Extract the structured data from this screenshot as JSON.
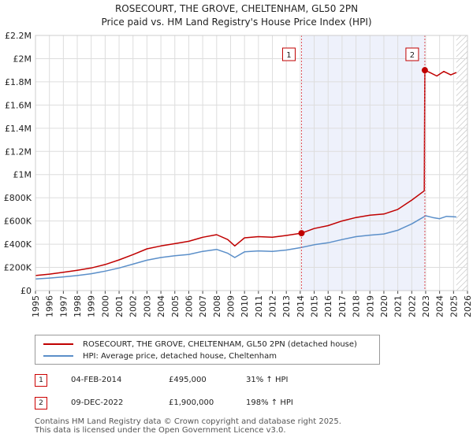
{
  "header": {
    "title": "ROSECOURT, THE GROVE, CHELTENHAM, GL50 2PN",
    "subtitle": "Price paid vs. HM Land Registry's House Price Index (HPI)"
  },
  "colors": {
    "property": "#c00000",
    "hpi": "#5b8fc9",
    "shade": "#eef1fb",
    "marker_line": "#e0505a",
    "grid": "#dddddd"
  },
  "chart_data": {
    "type": "line",
    "title": "Price paid vs. HM Land Registry's House Price Index (HPI)",
    "xlabel": "",
    "ylabel": "",
    "xlim": [
      1995,
      2026
    ],
    "ylim": [
      0,
      2200000
    ],
    "y_ticks": [
      {
        "value": 0,
        "label": "£0"
      },
      {
        "value": 200000,
        "label": "£200K"
      },
      {
        "value": 400000,
        "label": "£400K"
      },
      {
        "value": 600000,
        "label": "£600K"
      },
      {
        "value": 800000,
        "label": "£800K"
      },
      {
        "value": 1000000,
        "label": "£1M"
      },
      {
        "value": 1200000,
        "label": "£1.2M"
      },
      {
        "value": 1400000,
        "label": "£1.4M"
      },
      {
        "value": 1600000,
        "label": "£1.6M"
      },
      {
        "value": 1800000,
        "label": "£1.8M"
      },
      {
        "value": 2000000,
        "label": "£2M"
      },
      {
        "value": 2200000,
        "label": "£2.2M"
      }
    ],
    "x_ticks": [
      "1995",
      "1996",
      "1997",
      "1998",
      "1999",
      "2000",
      "2001",
      "2002",
      "2003",
      "2004",
      "2005",
      "2006",
      "2007",
      "2008",
      "2009",
      "2010",
      "2011",
      "2012",
      "2013",
      "2014",
      "2015",
      "2016",
      "2017",
      "2018",
      "2019",
      "2020",
      "2021",
      "2022",
      "2023",
      "2024",
      "2025",
      "2026"
    ],
    "shaded_ranges": [
      [
        2014.09,
        2022.94
      ]
    ],
    "hatched_ranges": [
      [
        2025.2,
        2026
      ]
    ],
    "series": [
      {
        "name": "ROSECOURT, THE GROVE, CHELTENHAM, GL50 2PN (detached house)",
        "color": "#c00000",
        "x": [
          1995,
          1996,
          1997,
          1998,
          1999,
          2000,
          2001,
          2002,
          2003,
          2004,
          2005,
          2006,
          2007,
          2008,
          2008.8,
          2009.3,
          2010,
          2011,
          2012,
          2013,
          2014.09,
          2015,
          2016,
          2017,
          2018,
          2019,
          2020,
          2021,
          2022,
          2022.9,
          2022.94,
          2023.3,
          2023.8,
          2024.3,
          2024.8,
          2025.2
        ],
        "y": [
          130000,
          142000,
          158000,
          175000,
          195000,
          225000,
          265000,
          310000,
          360000,
          385000,
          405000,
          425000,
          460000,
          482000,
          440000,
          385000,
          455000,
          465000,
          460000,
          475000,
          495000,
          535000,
          560000,
          600000,
          630000,
          650000,
          660000,
          700000,
          780000,
          860000,
          1900000,
          1880000,
          1850000,
          1890000,
          1860000,
          1880000
        ]
      },
      {
        "name": "HPI: Average price, detached house, Cheltenham",
        "color": "#5b8fc9",
        "x": [
          1995,
          1996,
          1997,
          1998,
          1999,
          2000,
          2001,
          2002,
          2003,
          2004,
          2005,
          2006,
          2007,
          2008,
          2008.8,
          2009.3,
          2010,
          2011,
          2012,
          2013,
          2014,
          2015,
          2016,
          2017,
          2018,
          2019,
          2020,
          2021,
          2022,
          2022.5,
          2023,
          2023.5,
          2024,
          2024.5,
          2025.2
        ],
        "y": [
          100000,
          108000,
          118000,
          130000,
          145000,
          168000,
          195000,
          228000,
          262000,
          285000,
          300000,
          312000,
          338000,
          355000,
          322000,
          285000,
          334000,
          342000,
          338000,
          350000,
          370000,
          395000,
          412000,
          440000,
          465000,
          478000,
          488000,
          520000,
          575000,
          610000,
          645000,
          630000,
          620000,
          640000,
          635000
        ]
      }
    ],
    "annotations": [
      {
        "id": "1",
        "x": 2014.09,
        "y": 495000
      },
      {
        "id": "2",
        "x": 2022.94,
        "y": 1900000
      }
    ]
  },
  "legend": {
    "items": [
      {
        "label": "ROSECOURT, THE GROVE, CHELTENHAM, GL50 2PN (detached house)"
      },
      {
        "label": "HPI: Average price, detached house, Cheltenham"
      }
    ]
  },
  "transactions": [
    {
      "id": "1",
      "date": "04-FEB-2014",
      "price": "£495,000",
      "hpi": "31% ↑ HPI"
    },
    {
      "id": "2",
      "date": "09-DEC-2022",
      "price": "£1,900,000",
      "hpi": "198% ↑ HPI"
    }
  ],
  "footer": {
    "line1": "Contains HM Land Registry data © Crown copyright and database right 2025.",
    "line2": "This data is licensed under the Open Government Licence v3.0."
  }
}
